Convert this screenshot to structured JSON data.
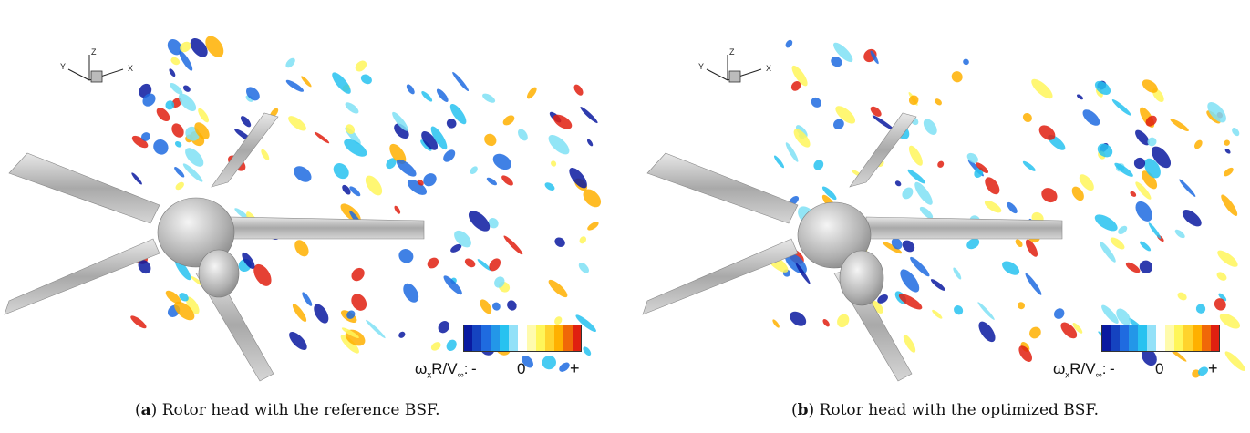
{
  "panels": [
    {
      "id": "a",
      "caption_letter": "a",
      "caption_text": ") Rotor head with the reference BSF.",
      "axis": {
        "x": "X",
        "y": "Y",
        "z": "Z"
      },
      "colorbar": {
        "variable": "ω",
        "sub1": "x",
        "mid": "R/V",
        "sub2": "∞",
        "colon": ":",
        "min": "-",
        "zero": "0",
        "max": "+"
      }
    },
    {
      "id": "b",
      "caption_letter": "b",
      "caption_text": ") Rotor head with the optimized BSF.",
      "axis": {
        "x": "X",
        "y": "Y",
        "z": "Z"
      },
      "colorbar": {
        "variable": "ω",
        "sub1": "x",
        "mid": "R/V",
        "sub2": "∞",
        "colon": ":",
        "min": "-",
        "zero": "0",
        "max": "+"
      }
    }
  ],
  "colors": {
    "cb_stops": [
      "#0a1aa0",
      "#1f6be0",
      "#27c2f0",
      "#ffffff",
      "#fff65a",
      "#ffb000",
      "#e02010"
    ],
    "blade": "#b8b8b8",
    "hub": "#cfcfcf"
  }
}
